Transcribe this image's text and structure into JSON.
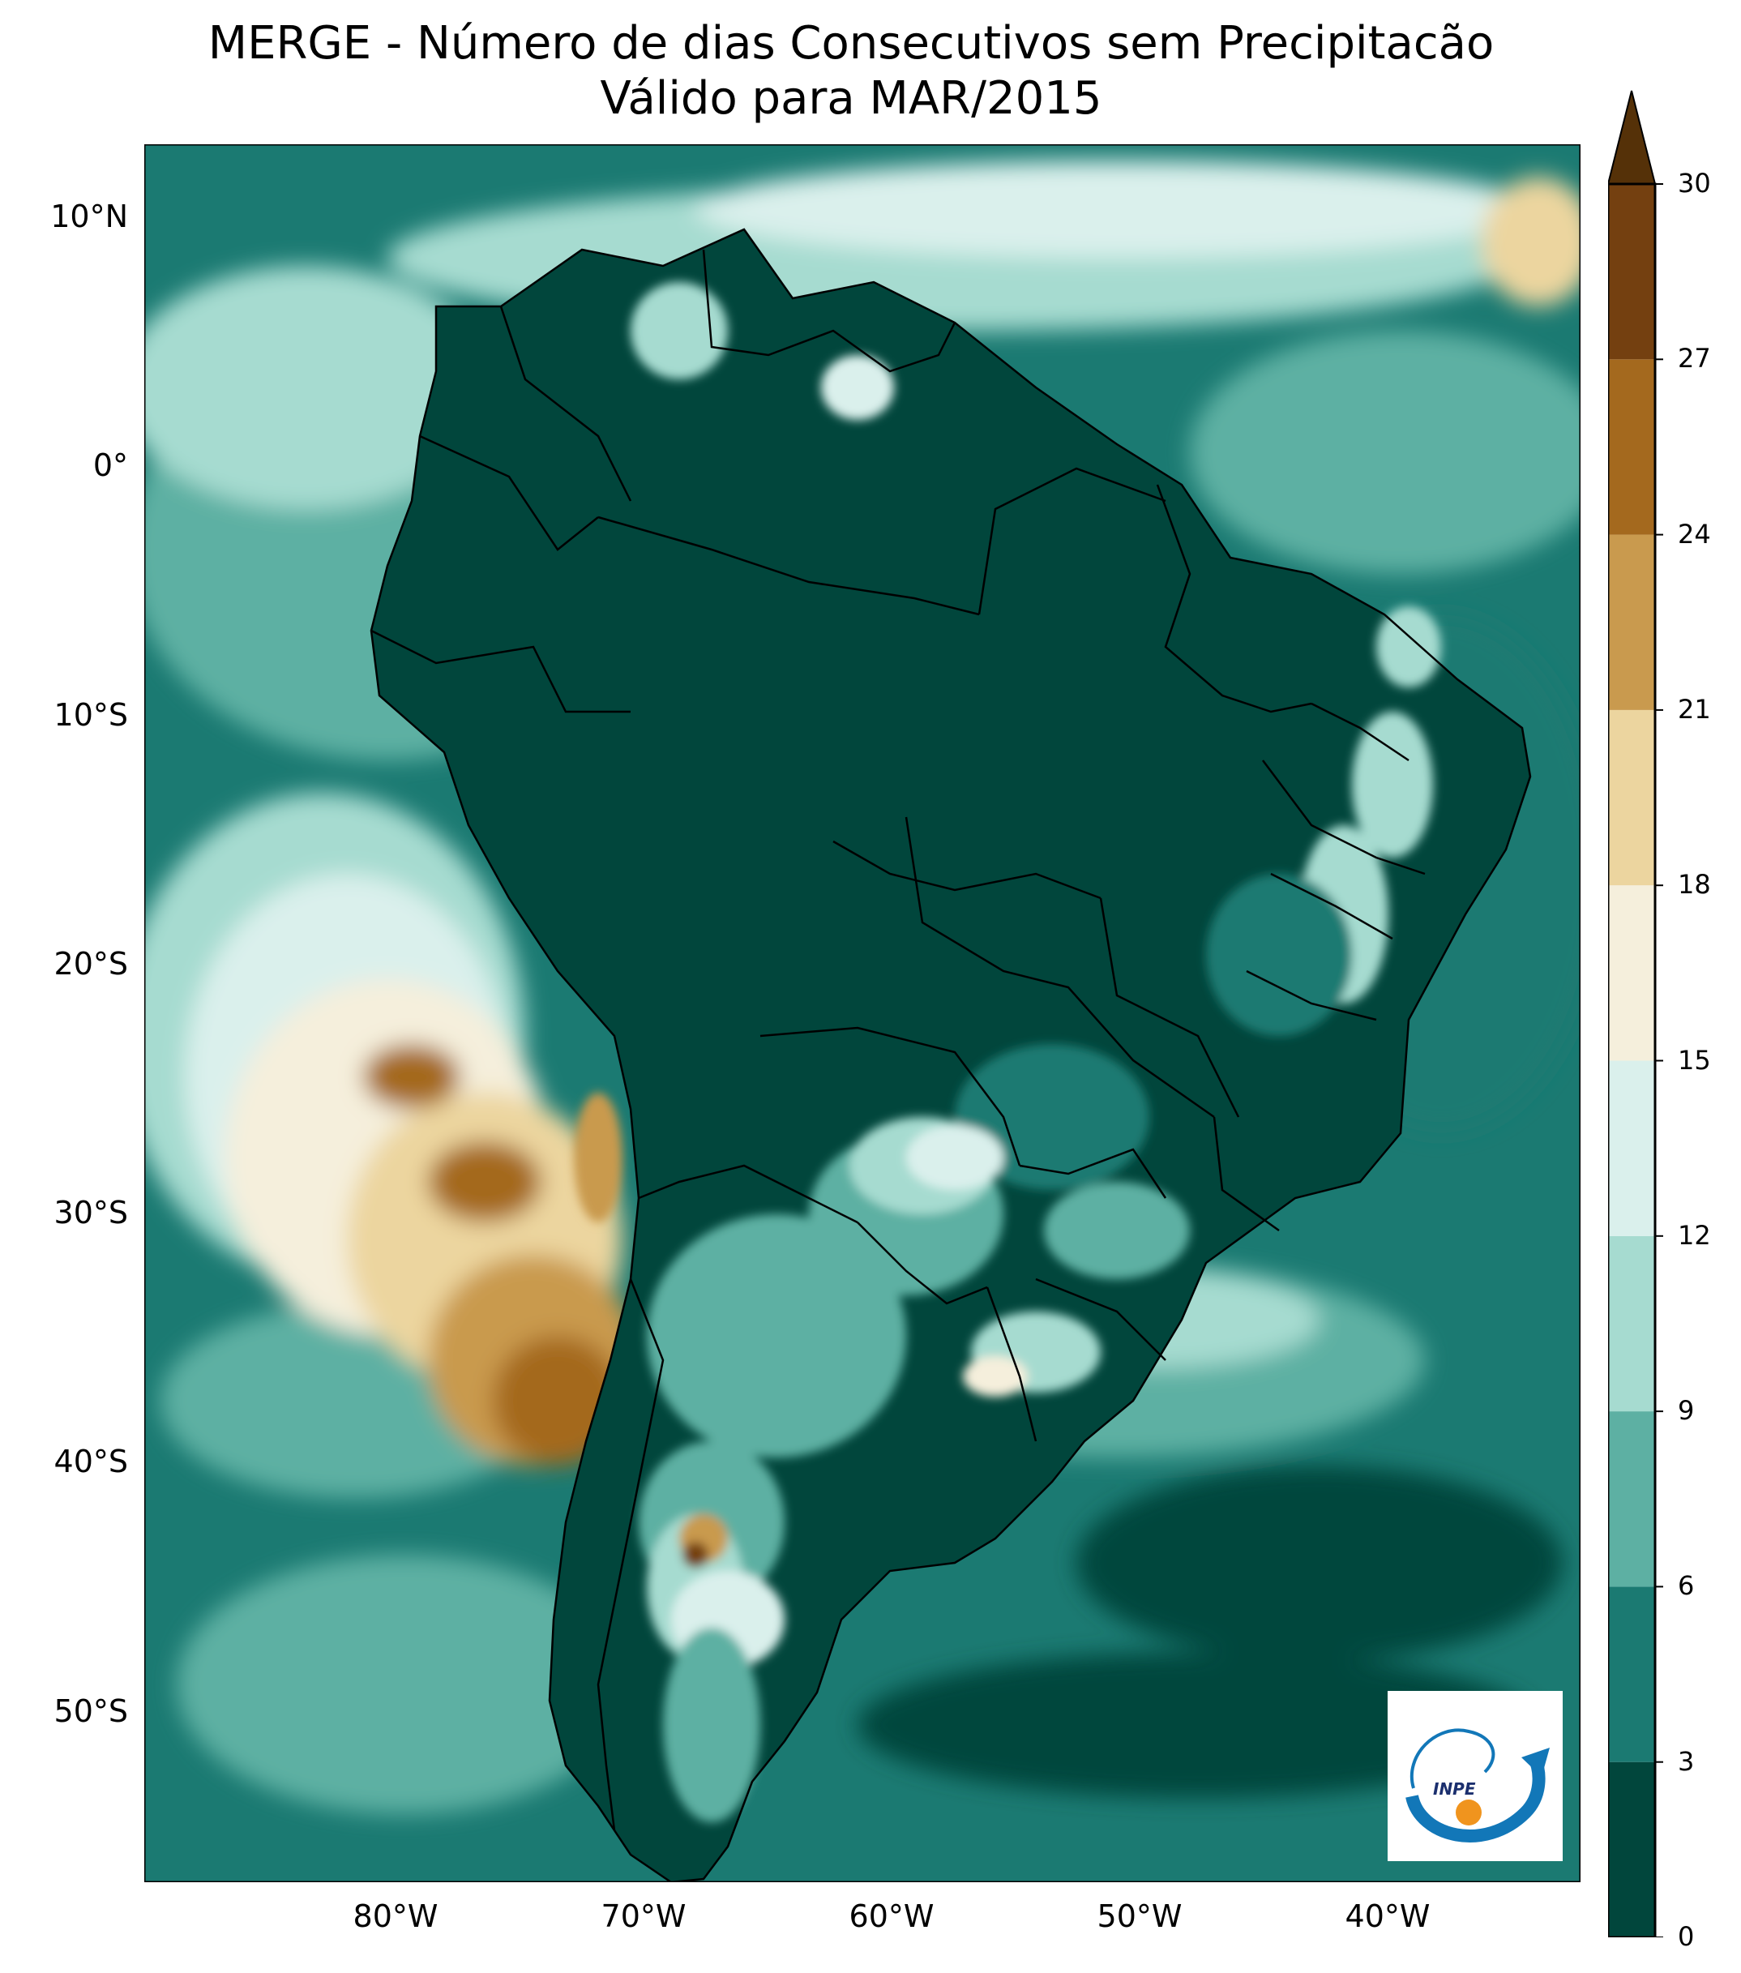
{
  "title": {
    "line1": "MERGE - Número de dias Consecutivos sem Precipitacão",
    "line2": "Válido para MAR/2015"
  },
  "axes": {
    "lat_ticks": [
      "10°N",
      "0°",
      "10°S",
      "20°S",
      "30°S",
      "40°S",
      "50°S"
    ],
    "lat_values": [
      10,
      0,
      -10,
      -20,
      -30,
      -40,
      -50
    ],
    "lon_ticks": [
      "80°W",
      "70°W",
      "60°W",
      "50°W",
      "40°W"
    ],
    "lon_values": [
      -80,
      -70,
      -60,
      -50,
      -40
    ],
    "lat_range": [
      -57,
      13
    ],
    "lon_range": [
      -90,
      -32
    ]
  },
  "colorbar": {
    "ticks": [
      "0",
      "3",
      "6",
      "9",
      "12",
      "15",
      "18",
      "21",
      "24",
      "27",
      "30"
    ],
    "tick_values": [
      0,
      3,
      6,
      9,
      12,
      15,
      18,
      21,
      24,
      27,
      30
    ],
    "colors": [
      "#01463c",
      "#1b7a72",
      "#5db0a3",
      "#a6dbd0",
      "#daf0ec",
      "#f5efdc",
      "#ecd59f",
      "#c99a4e",
      "#a4691e",
      "#744010",
      "#553108"
    ],
    "extend": "max"
  },
  "logo": {
    "text": "INPE"
  }
}
